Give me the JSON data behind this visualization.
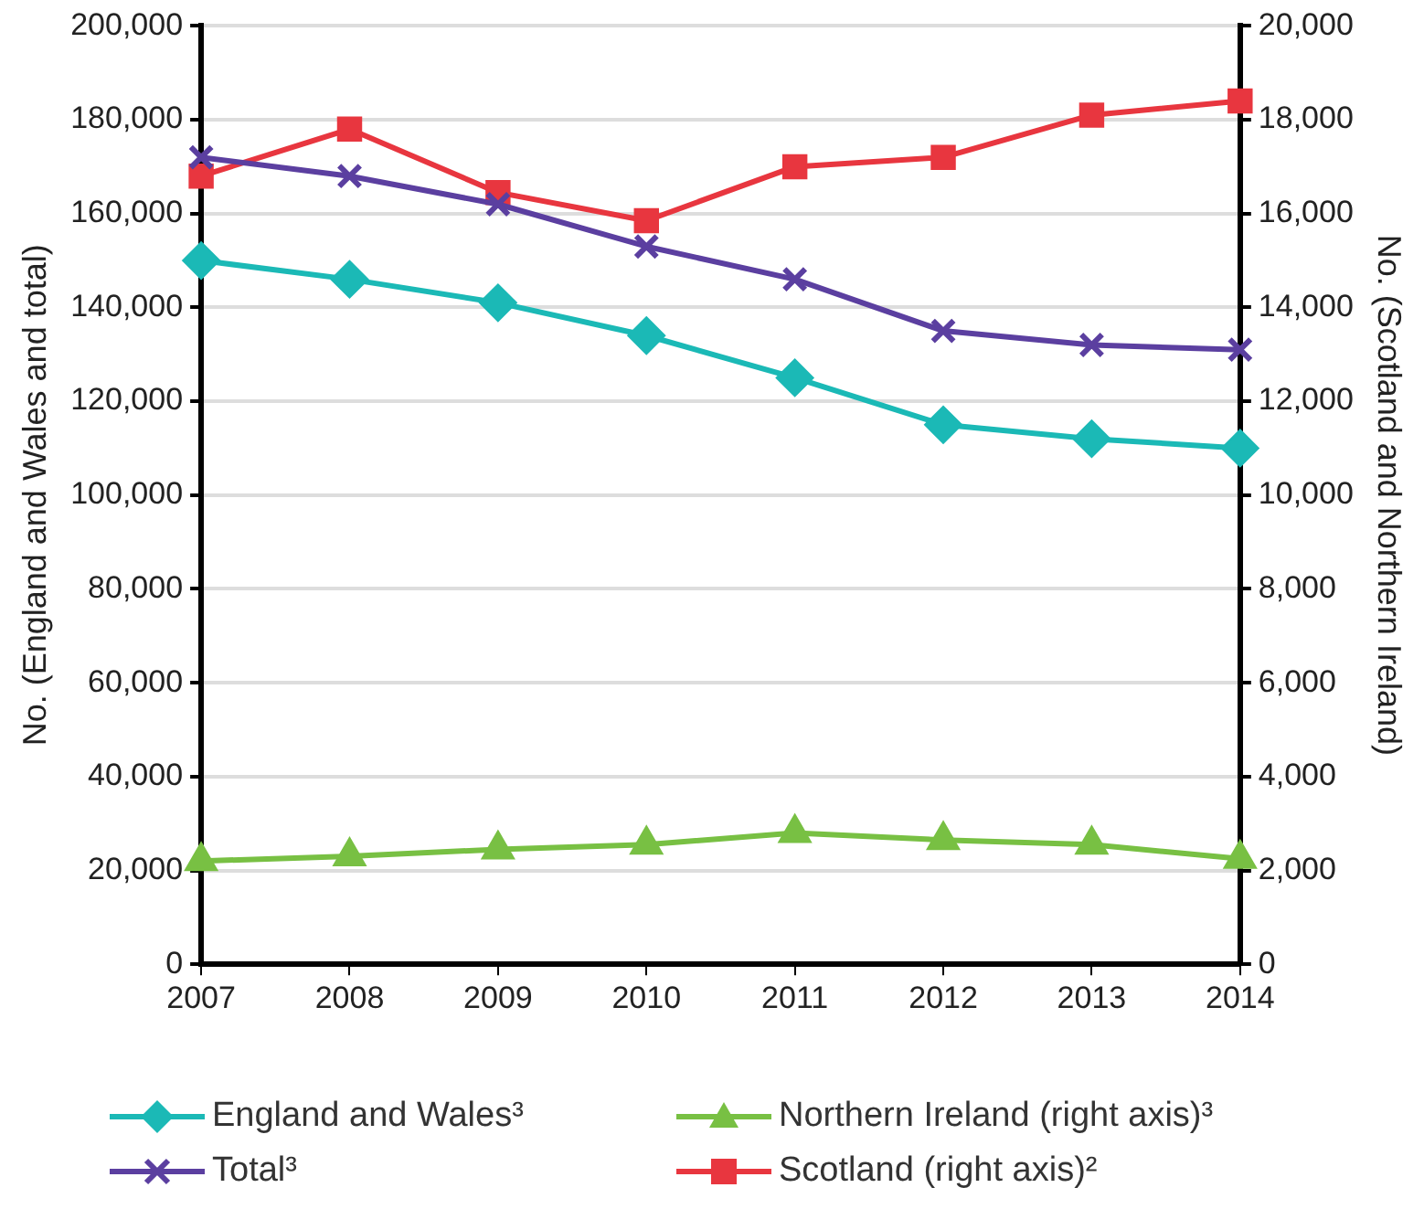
{
  "chart_data": {
    "type": "line",
    "categories": [
      "2007",
      "2008",
      "2009",
      "2010",
      "2011",
      "2012",
      "2013",
      "2014"
    ],
    "ylabel": "No. (England and Wales and total)",
    "y2label": "No. (Scotland and Northern Ireland)",
    "ylim": [
      0,
      200000
    ],
    "yticks": [
      0,
      {
        "value": 20000,
        "label": "20,000"
      },
      {
        "value": 40000,
        "label": "40,000"
      },
      {
        "value": 60000,
        "label": "60,000"
      },
      {
        "value": 80000,
        "label": "80,000"
      },
      {
        "value": 100000,
        "label": "100,000"
      },
      {
        "value": 120000,
        "label": "120,000"
      },
      {
        "value": 140000,
        "label": "140,000"
      },
      {
        "value": 160000,
        "label": "160,000"
      },
      {
        "value": 180000,
        "label": "180,000"
      },
      {
        "value": 200000,
        "label": "200,000"
      }
    ],
    "y2lim": [
      0,
      20000
    ],
    "y2ticks": [
      0,
      {
        "value": 2000,
        "label": "2,000"
      },
      {
        "value": 4000,
        "label": "4,000"
      },
      {
        "value": 6000,
        "label": "6,000"
      },
      {
        "value": 8000,
        "label": "8,000"
      },
      {
        "value": 10000,
        "label": "10,000"
      },
      {
        "value": 12000,
        "label": "12,000"
      },
      {
        "value": 14000,
        "label": "14,000"
      },
      {
        "value": 16000,
        "label": "16,000"
      },
      {
        "value": 18000,
        "label": "18,000"
      },
      {
        "value": 20000,
        "label": "20,000"
      }
    ],
    "grid": "y",
    "legend": "bottom",
    "line_style": "solid",
    "series": [
      {
        "name": "England and Wales³",
        "color": "#1bb9b6",
        "marker": "diamond",
        "values": [
          150000,
          146000,
          141000,
          134000,
          125000,
          115000,
          112000,
          110000
        ]
      },
      {
        "name": "Northern Ireland (right axis)³",
        "color": "#78c043",
        "marker": "triangle",
        "axis": "y2",
        "values": [
          2200,
          2300,
          2450,
          2550,
          2800,
          2650,
          2550,
          2250
        ]
      },
      {
        "name": "Total³",
        "color": "#5b3fa0",
        "marker": "cross",
        "values": [
          172000,
          168000,
          162000,
          153000,
          146000,
          135000,
          132000,
          131000
        ]
      },
      {
        "name": "Scotland (right axis)²",
        "color": "#e8363f",
        "marker": "square",
        "axis": "y2",
        "values": [
          16800,
          17800,
          16450,
          15850,
          17000,
          17200,
          18100,
          18400
        ]
      }
    ]
  }
}
